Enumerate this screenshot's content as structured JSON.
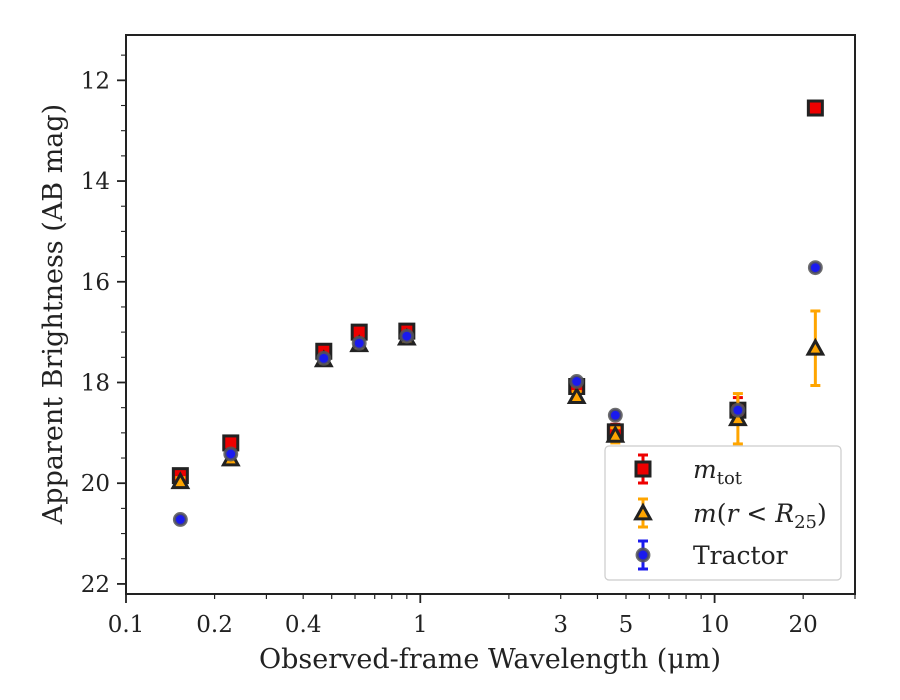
{
  "chart_data": {
    "type": "scatter",
    "title": "",
    "xlabel": "Observed-frame Wavelength (μm)",
    "ylabel": "Apparent Brightness (AB mag)",
    "xscale": "log",
    "xlim": [
      0.1,
      30
    ],
    "ylim": [
      22.2,
      11.1
    ],
    "y_inverted": true,
    "x_tick_labels": [
      "0.1",
      "0.2",
      "0.4",
      "1",
      "3",
      "5",
      "10",
      "20"
    ],
    "x_ticks": [
      0.1,
      0.2,
      0.4,
      1,
      3,
      5,
      10,
      20
    ],
    "y_tick_labels": [
      "12",
      "14",
      "16",
      "18",
      "20",
      "22"
    ],
    "y_ticks": [
      12,
      14,
      16,
      18,
      20,
      22
    ],
    "grid": false,
    "legend_position": "lower-right",
    "series": [
      {
        "name": "m_tot",
        "marker": "square",
        "color": "#ee0000",
        "errcolor": "#ee0000",
        "points": [
          {
            "x": 0.153,
            "y": 19.85,
            "err": 0.1
          },
          {
            "x": 0.227,
            "y": 19.2,
            "err": 0.1
          },
          {
            "x": 0.47,
            "y": 17.38,
            "err": 0.1
          },
          {
            "x": 0.62,
            "y": 17.0,
            "err": 0.1
          },
          {
            "x": 0.9,
            "y": 16.98,
            "err": 0.1
          },
          {
            "x": 3.4,
            "y": 18.08,
            "err": 0.12
          },
          {
            "x": 4.6,
            "y": 18.98,
            "err": 0.15
          },
          {
            "x": 12.0,
            "y": 18.55,
            "err": 0.25
          },
          {
            "x": 22.0,
            "y": 12.55,
            "err": 0.08
          }
        ]
      },
      {
        "name": "m(r < R25)",
        "marker": "triangle",
        "color": "#ffa500",
        "errcolor": "#ffa500",
        "points": [
          {
            "x": 0.153,
            "y": 19.97,
            "err": 0.08
          },
          {
            "x": 0.227,
            "y": 19.52,
            "err": 0.08
          },
          {
            "x": 0.47,
            "y": 17.55,
            "err": 0.08
          },
          {
            "x": 0.62,
            "y": 17.25,
            "err": 0.08
          },
          {
            "x": 0.9,
            "y": 17.12,
            "err": 0.08
          },
          {
            "x": 3.4,
            "y": 18.28,
            "err": 0.1
          },
          {
            "x": 4.6,
            "y": 19.05,
            "err": 0.15
          },
          {
            "x": 12.0,
            "y": 18.72,
            "err": 0.5
          },
          {
            "x": 22.0,
            "y": 17.32,
            "err": 0.74
          }
        ]
      },
      {
        "name": "Tractor",
        "marker": "circle",
        "color": "#1a1aee",
        "errcolor": "#1a1aee",
        "points": [
          {
            "x": 0.153,
            "y": 20.72,
            "err": 0.05
          },
          {
            "x": 0.227,
            "y": 19.42,
            "err": 0.05
          },
          {
            "x": 0.47,
            "y": 17.52,
            "err": 0.05
          },
          {
            "x": 0.62,
            "y": 17.22,
            "err": 0.05
          },
          {
            "x": 0.9,
            "y": 17.08,
            "err": 0.05
          },
          {
            "x": 3.4,
            "y": 17.98,
            "err": 0.05
          },
          {
            "x": 4.6,
            "y": 18.65,
            "err": 0.05
          },
          {
            "x": 12.0,
            "y": 18.55,
            "err": 0.05
          },
          {
            "x": 22.0,
            "y": 15.72,
            "err": 0.05
          }
        ]
      }
    ]
  }
}
